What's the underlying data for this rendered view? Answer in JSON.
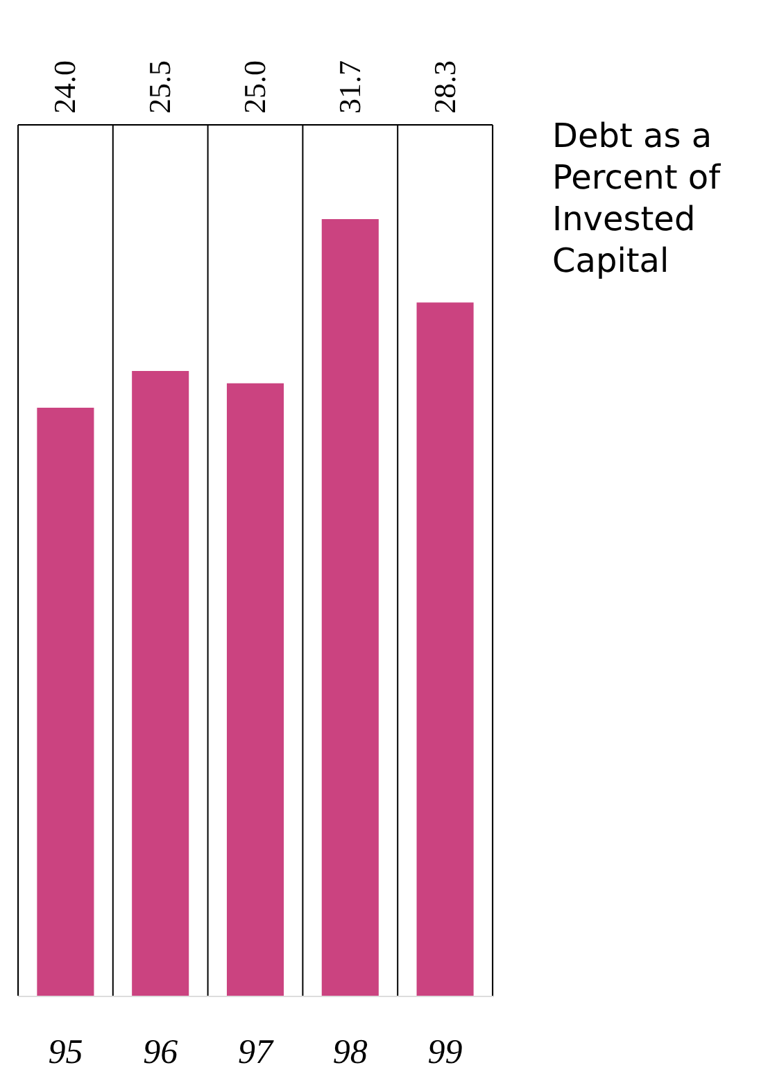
{
  "chart_data": {
    "type": "bar",
    "title": "Debt as a Percent of Invested Capital",
    "categories": [
      "95",
      "96",
      "97",
      "98",
      "99"
    ],
    "values": [
      24.0,
      25.5,
      25.0,
      31.7,
      28.3
    ],
    "value_labels": [
      "24.0",
      "25.5",
      "25.0",
      "31.7",
      "28.3"
    ],
    "color": "#cb4380",
    "grid": "x"
  }
}
